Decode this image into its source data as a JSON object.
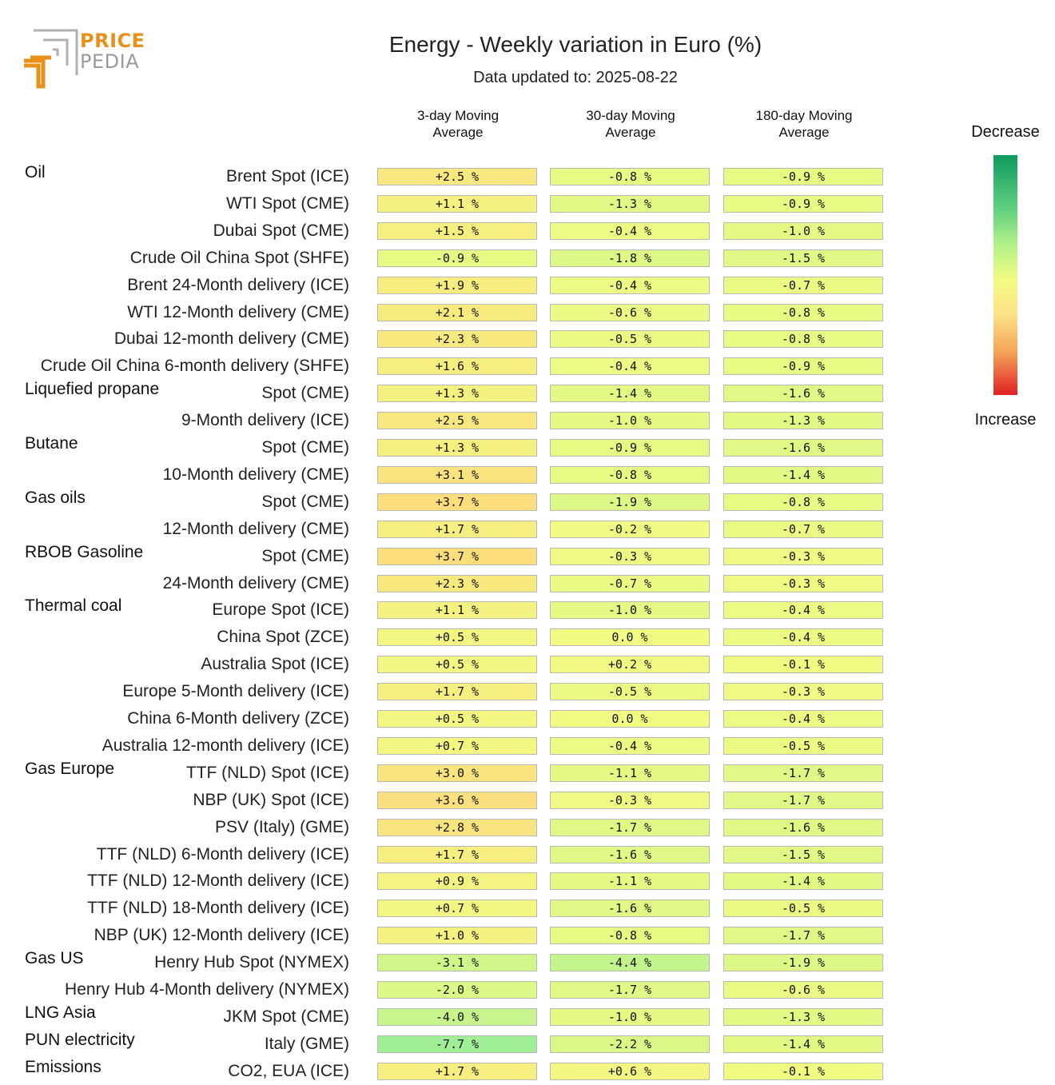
{
  "logo": {
    "line1": "PRICE",
    "line2": "PEDIA",
    "icon": "pricepedia-logo-icon"
  },
  "header": {
    "title": "Energy - Weekly variation in Euro (%)",
    "subtitle": "Data updated to: 2025-08-22"
  },
  "legend": {
    "top": "Decrease",
    "bottom": "Increase"
  },
  "chart_data": {
    "type": "table",
    "title": "Energy - Weekly variation in Euro (%)",
    "subtitle": "Data updated to: 2025-08-22",
    "columns": [
      {
        "line1": "3-day Moving",
        "line2": "Average"
      },
      {
        "line1": "30-day Moving",
        "line2": "Average"
      },
      {
        "line1": "180-day Moving",
        "line2": "Average"
      }
    ],
    "rows": [
      {
        "group": "Oil",
        "label": "Brent Spot (ICE)",
        "values": [
          "+2.5 %",
          "-0.8 %",
          "-0.9 %"
        ]
      },
      {
        "group": "",
        "label": "WTI Spot (CME)",
        "values": [
          "+1.1 %",
          "-1.3 %",
          "-0.9 %"
        ]
      },
      {
        "group": "",
        "label": "Dubai Spot (CME)",
        "values": [
          "+1.5 %",
          "-0.4 %",
          "-1.0 %"
        ]
      },
      {
        "group": "",
        "label": "Crude Oil China Spot (SHFE)",
        "values": [
          "-0.9 %",
          "-1.8 %",
          "-1.5 %"
        ]
      },
      {
        "group": "",
        "label": "Brent 24-Month delivery (ICE)",
        "values": [
          "+1.9 %",
          "-0.4 %",
          "-0.7 %"
        ]
      },
      {
        "group": "",
        "label": "WTI 12-Month delivery (CME)",
        "values": [
          "+2.1 %",
          "-0.6 %",
          "-0.8 %"
        ]
      },
      {
        "group": "",
        "label": "Dubai 12-month delivery (CME)",
        "values": [
          "+2.3 %",
          "-0.5 %",
          "-0.8 %"
        ]
      },
      {
        "group": "",
        "label": "Crude Oil China 6-month delivery (SHFE)",
        "values": [
          "+1.6 %",
          "-0.4 %",
          "-0.9 %"
        ]
      },
      {
        "group": "Liquefied propane",
        "label": "Spot (CME)",
        "values": [
          "+1.3 %",
          "-1.4 %",
          "-1.6 %"
        ]
      },
      {
        "group": "",
        "label": "9-Month delivery (ICE)",
        "values": [
          "+2.5 %",
          "-1.0 %",
          "-1.3 %"
        ]
      },
      {
        "group": "Butane",
        "label": "Spot (CME)",
        "values": [
          "+1.3 %",
          "-0.9 %",
          "-1.6 %"
        ]
      },
      {
        "group": "",
        "label": "10-Month delivery (CME)",
        "values": [
          "+3.1 %",
          "-0.8 %",
          "-1.4 %"
        ]
      },
      {
        "group": "Gas oils",
        "label": "Spot (CME)",
        "values": [
          "+3.7 %",
          "-1.9 %",
          "-0.8 %"
        ]
      },
      {
        "group": "",
        "label": "12-Month delivery (CME)",
        "values": [
          "+1.7 %",
          "-0.2 %",
          "-0.7 %"
        ]
      },
      {
        "group": "RBOB Gasoline",
        "label": "Spot (CME)",
        "values": [
          "+3.7 %",
          "-0.3 %",
          "-0.3 %"
        ]
      },
      {
        "group": "",
        "label": "24-Month delivery (CME)",
        "values": [
          "+2.3 %",
          "-0.7 %",
          "-0.3 %"
        ]
      },
      {
        "group": "Thermal coal",
        "label": "Europe Spot (ICE)",
        "values": [
          "+1.1 %",
          "-1.0 %",
          "-0.4 %"
        ]
      },
      {
        "group": "",
        "label": "China Spot (ZCE)",
        "values": [
          "+0.5 %",
          "0.0 %",
          "-0.4 %"
        ]
      },
      {
        "group": "",
        "label": "Australia Spot (ICE)",
        "values": [
          "+0.5 %",
          "+0.2 %",
          "-0.1 %"
        ]
      },
      {
        "group": "",
        "label": "Europe 5-Month delivery (ICE)",
        "values": [
          "+1.7 %",
          "-0.5 %",
          "-0.3 %"
        ]
      },
      {
        "group": "",
        "label": "China 6-Month delivery (ZCE)",
        "values": [
          "+0.5 %",
          "0.0 %",
          "-0.4 %"
        ]
      },
      {
        "group": "",
        "label": "Australia 12-month delivery (ICE)",
        "values": [
          "+0.7 %",
          "-0.4 %",
          "-0.5 %"
        ]
      },
      {
        "group": "Gas Europe",
        "label": "TTF (NLD) Spot (ICE)",
        "values": [
          "+3.0 %",
          "-1.1 %",
          "-1.7 %"
        ]
      },
      {
        "group": "",
        "label": "NBP (UK) Spot (ICE)",
        "values": [
          "+3.6 %",
          "-0.3 %",
          "-1.7 %"
        ]
      },
      {
        "group": "",
        "label": "PSV (Italy) (GME)",
        "values": [
          "+2.8 %",
          "-1.7 %",
          "-1.6 %"
        ]
      },
      {
        "group": "",
        "label": "TTF (NLD) 6-Month delivery (ICE)",
        "values": [
          "+1.7 %",
          "-1.6 %",
          "-1.5 %"
        ]
      },
      {
        "group": "",
        "label": "TTF (NLD) 12-Month delivery (ICE)",
        "values": [
          "+0.9 %",
          "-1.1 %",
          "-1.4 %"
        ]
      },
      {
        "group": "",
        "label": "TTF (NLD) 18-Month delivery (ICE)",
        "values": [
          "+0.7 %",
          "-1.6 %",
          "-0.5 %"
        ]
      },
      {
        "group": "",
        "label": "NBP (UK) 12-Month delivery (ICE)",
        "values": [
          "+1.0 %",
          "-0.8 %",
          "-1.7 %"
        ]
      },
      {
        "group": "Gas US",
        "label": "Henry Hub Spot (NYMEX)",
        "values": [
          "-3.1 %",
          "-4.4 %",
          "-1.9 %"
        ]
      },
      {
        "group": "",
        "label": "Henry Hub 4-Month delivery (NYMEX)",
        "values": [
          "-2.0 %",
          "-1.7 %",
          "-0.6 %"
        ]
      },
      {
        "group": "LNG Asia",
        "label": "JKM Spot (CME)",
        "values": [
          "-4.0 %",
          "-1.0 %",
          "-1.3 %"
        ]
      },
      {
        "group": "PUN electricity",
        "label": "Italy (GME)",
        "values": [
          "-7.7 %",
          "-2.2 %",
          "-1.4 %"
        ]
      },
      {
        "group": "Emissions",
        "label": "CO2, EUA (ICE)",
        "values": [
          "+1.7 %",
          "+0.6 %",
          "-0.1 %"
        ]
      }
    ],
    "color_scale": {
      "decrease": "#0e9a5e",
      "mid": "#f1fb82",
      "increase": "#e02025"
    },
    "legend_placement": "right"
  }
}
